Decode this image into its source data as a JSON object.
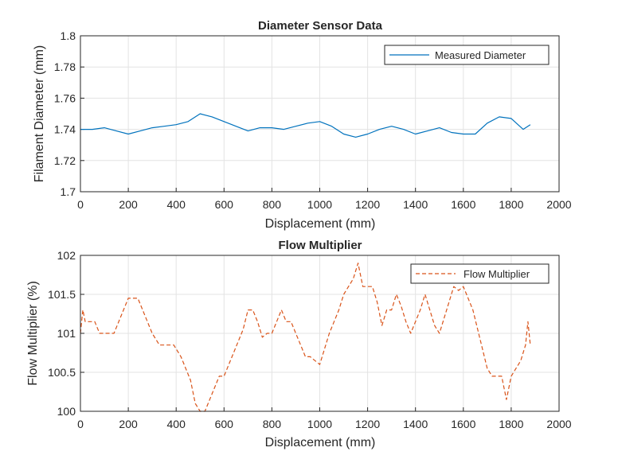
{
  "chart_data": [
    {
      "type": "line",
      "title": "Diameter Sensor Data",
      "xlabel": "Displacement (mm)",
      "ylabel": "Filament Diameter (mm)",
      "xlim": [
        0,
        2000
      ],
      "ylim": [
        1.7,
        1.8
      ],
      "xticks": [
        "0",
        "200",
        "400",
        "600",
        "800",
        "1000",
        "1200",
        "1400",
        "1600",
        "1800",
        "2000"
      ],
      "yticks": [
        "1.7",
        "1.72",
        "1.74",
        "1.76",
        "1.78",
        "1.8"
      ],
      "grid": true,
      "legend": "top-right",
      "series": [
        {
          "name": "Measured Diameter",
          "color": "#0072BD",
          "style": "solid",
          "x": [
            0,
            50,
            100,
            150,
            200,
            250,
            300,
            350,
            400,
            450,
            500,
            550,
            600,
            650,
            700,
            750,
            800,
            850,
            900,
            950,
            1000,
            1050,
            1100,
            1150,
            1200,
            1250,
            1300,
            1350,
            1400,
            1450,
            1500,
            1550,
            1600,
            1650,
            1700,
            1750,
            1800,
            1850,
            1880
          ],
          "y": [
            1.74,
            1.74,
            1.741,
            1.739,
            1.737,
            1.739,
            1.741,
            1.742,
            1.743,
            1.745,
            1.75,
            1.748,
            1.745,
            1.742,
            1.739,
            1.741,
            1.741,
            1.74,
            1.742,
            1.744,
            1.745,
            1.742,
            1.737,
            1.735,
            1.737,
            1.74,
            1.742,
            1.74,
            1.737,
            1.739,
            1.741,
            1.738,
            1.737,
            1.737,
            1.744,
            1.748,
            1.747,
            1.74,
            1.743
          ]
        }
      ]
    },
    {
      "type": "line",
      "title": "Flow Multiplier",
      "xlabel": "Displacement (mm)",
      "ylabel": "Flow Multiplier (%)",
      "xlim": [
        0,
        2000
      ],
      "ylim": [
        100,
        102
      ],
      "xticks": [
        "0",
        "200",
        "400",
        "600",
        "800",
        "1000",
        "1200",
        "1400",
        "1600",
        "1800",
        "2000"
      ],
      "yticks": [
        "100",
        "100.5",
        "101",
        "101.5",
        "102"
      ],
      "grid": true,
      "legend": "top-right",
      "series": [
        {
          "name": "Flow Multiplier",
          "color": "#D95319",
          "style": "dashed",
          "x": [
            0,
            10,
            20,
            40,
            60,
            80,
            100,
            120,
            140,
            160,
            180,
            200,
            220,
            240,
            260,
            280,
            300,
            330,
            360,
            390,
            420,
            440,
            460,
            480,
            500,
            520,
            540,
            560,
            580,
            600,
            620,
            640,
            660,
            680,
            700,
            720,
            740,
            760,
            780,
            800,
            820,
            840,
            860,
            880,
            900,
            920,
            940,
            960,
            980,
            1000,
            1020,
            1040,
            1060,
            1080,
            1100,
            1120,
            1140,
            1160,
            1180,
            1200,
            1220,
            1240,
            1260,
            1280,
            1300,
            1320,
            1340,
            1360,
            1380,
            1400,
            1420,
            1440,
            1460,
            1480,
            1500,
            1520,
            1540,
            1560,
            1580,
            1600,
            1620,
            1640,
            1660,
            1680,
            1700,
            1720,
            1740,
            1760,
            1780,
            1800,
            1820,
            1840,
            1860,
            1870,
            1880
          ],
          "y": [
            101.0,
            101.3,
            101.15,
            101.15,
            101.15,
            101.0,
            101.0,
            101.0,
            101.0,
            101.15,
            101.3,
            101.45,
            101.45,
            101.45,
            101.3,
            101.15,
            101.0,
            100.85,
            100.85,
            100.85,
            100.7,
            100.55,
            100.4,
            100.1,
            100.0,
            100.0,
            100.15,
            100.3,
            100.45,
            100.45,
            100.6,
            100.75,
            100.9,
            101.05,
            101.3,
            101.3,
            101.15,
            100.95,
            101.0,
            101.0,
            101.15,
            101.3,
            101.15,
            101.15,
            101.0,
            100.85,
            100.7,
            100.7,
            100.65,
            100.6,
            100.8,
            101.0,
            101.15,
            101.3,
            101.5,
            101.6,
            101.7,
            101.9,
            101.6,
            101.6,
            101.6,
            101.4,
            101.1,
            101.3,
            101.3,
            101.5,
            101.35,
            101.15,
            101.0,
            101.15,
            101.3,
            101.5,
            101.3,
            101.1,
            101.0,
            101.2,
            101.4,
            101.6,
            101.55,
            101.6,
            101.45,
            101.3,
            101.05,
            100.8,
            100.55,
            100.45,
            100.45,
            100.45,
            100.15,
            100.45,
            100.55,
            100.65,
            100.85,
            101.15,
            100.85
          ]
        }
      ]
    }
  ]
}
